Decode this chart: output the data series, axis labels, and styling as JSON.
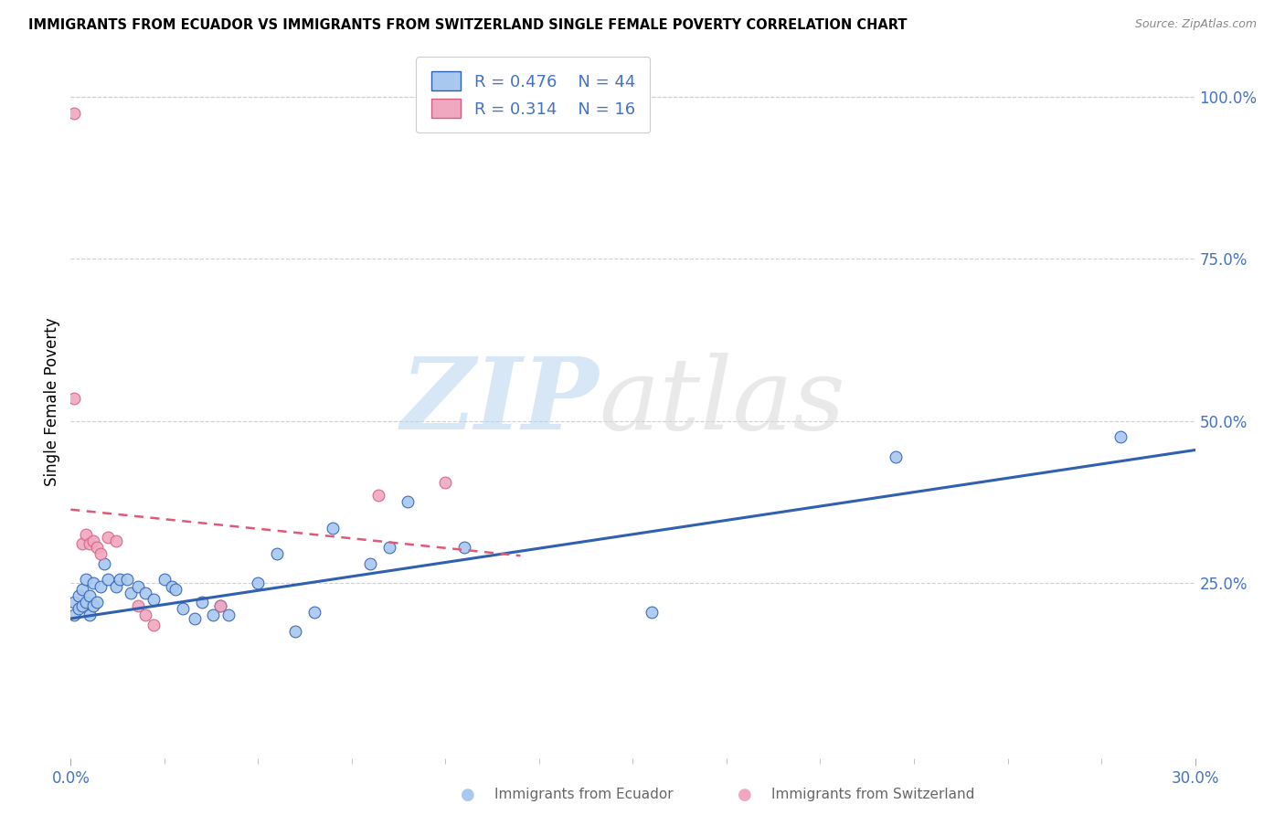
{
  "title": "IMMIGRANTS FROM ECUADOR VS IMMIGRANTS FROM SWITZERLAND SINGLE FEMALE POVERTY CORRELATION CHART",
  "source": "Source: ZipAtlas.com",
  "ylabel": "Single Female Poverty",
  "right_yticks": [
    0.0,
    0.25,
    0.5,
    0.75,
    1.0
  ],
  "right_yticklabels": [
    "",
    "25.0%",
    "50.0%",
    "75.0%",
    "100.0%"
  ],
  "xlim": [
    0.0,
    0.3
  ],
  "ylim": [
    -0.02,
    1.08
  ],
  "legend_ecuador_R": "0.476",
  "legend_ecuador_N": "44",
  "legend_switzerland_R": "0.314",
  "legend_switzerland_N": "16",
  "color_ecuador": "#a8c8f0",
  "color_switzerland": "#f0a8c0",
  "color_ecuador_line": "#3060b0",
  "color_switzerland_line": "#e05878",
  "color_axis_labels": "#4472c4",
  "ecuador_points": [
    [
      0.001,
      0.22
    ],
    [
      0.001,
      0.2
    ],
    [
      0.002,
      0.21
    ],
    [
      0.002,
      0.23
    ],
    [
      0.003,
      0.215
    ],
    [
      0.003,
      0.24
    ],
    [
      0.004,
      0.22
    ],
    [
      0.004,
      0.255
    ],
    [
      0.005,
      0.2
    ],
    [
      0.005,
      0.23
    ],
    [
      0.006,
      0.215
    ],
    [
      0.006,
      0.25
    ],
    [
      0.007,
      0.22
    ],
    [
      0.008,
      0.245
    ],
    [
      0.009,
      0.28
    ],
    [
      0.01,
      0.255
    ],
    [
      0.012,
      0.245
    ],
    [
      0.013,
      0.255
    ],
    [
      0.015,
      0.255
    ],
    [
      0.016,
      0.235
    ],
    [
      0.018,
      0.245
    ],
    [
      0.02,
      0.235
    ],
    [
      0.022,
      0.225
    ],
    [
      0.025,
      0.255
    ],
    [
      0.027,
      0.245
    ],
    [
      0.028,
      0.24
    ],
    [
      0.03,
      0.21
    ],
    [
      0.033,
      0.195
    ],
    [
      0.035,
      0.22
    ],
    [
      0.038,
      0.2
    ],
    [
      0.04,
      0.215
    ],
    [
      0.042,
      0.2
    ],
    [
      0.05,
      0.25
    ],
    [
      0.055,
      0.295
    ],
    [
      0.06,
      0.175
    ],
    [
      0.065,
      0.205
    ],
    [
      0.07,
      0.335
    ],
    [
      0.08,
      0.28
    ],
    [
      0.085,
      0.305
    ],
    [
      0.09,
      0.375
    ],
    [
      0.105,
      0.305
    ],
    [
      0.155,
      0.205
    ],
    [
      0.22,
      0.445
    ],
    [
      0.28,
      0.475
    ]
  ],
  "switzerland_points": [
    [
      0.001,
      0.975
    ],
    [
      0.001,
      0.535
    ],
    [
      0.003,
      0.31
    ],
    [
      0.004,
      0.325
    ],
    [
      0.005,
      0.31
    ],
    [
      0.006,
      0.315
    ],
    [
      0.007,
      0.305
    ],
    [
      0.008,
      0.295
    ],
    [
      0.01,
      0.32
    ],
    [
      0.012,
      0.315
    ],
    [
      0.018,
      0.215
    ],
    [
      0.02,
      0.2
    ],
    [
      0.022,
      0.185
    ],
    [
      0.04,
      0.215
    ],
    [
      0.082,
      0.385
    ],
    [
      0.1,
      0.405
    ]
  ],
  "ecuador_size": 85,
  "switzerland_size": 85
}
